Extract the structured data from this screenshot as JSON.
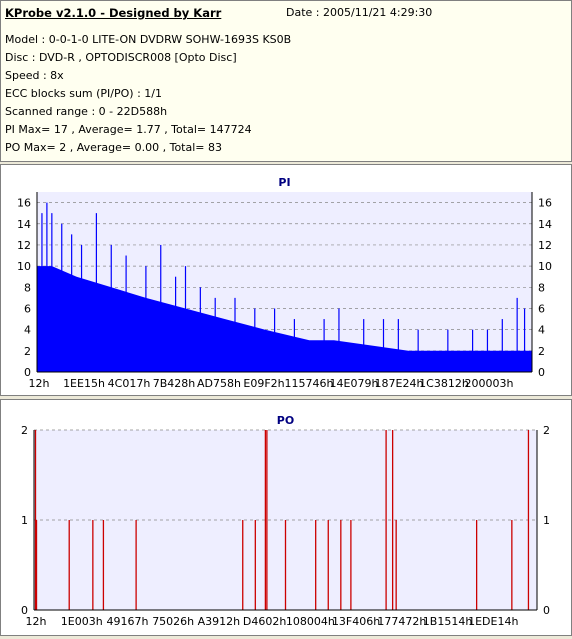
{
  "header": {
    "title": "KProbe v2.1.0 - Designed by Karr",
    "date": "Date : 2005/11/21 4:29:30",
    "lines": [
      "Model : 0-0-1-0 LITE-ON DVDRW SOHW-1693S KS0B",
      "Disc : DVD-R , OPTODISCR008 [Opto Disc]",
      "Speed : 8x",
      "ECC blocks sum (PI/PO) : 1/1",
      "Scanned range : 0 - 22D588h",
      "PI Max= 17 , Average= 1.77 , Total= 147724",
      "PO Max= 2 , Average= 0.00 , Total= 83"
    ]
  },
  "colors": {
    "pi_fill": "#0000ff",
    "po_line": "#cc0000",
    "title_text": "#000080",
    "grid": "#888888",
    "plot_bg": "#eeeeff"
  },
  "chart_data": [
    {
      "type": "area",
      "title": "PI",
      "ylim": [
        0,
        17
      ],
      "yticks": [
        0,
        2,
        4,
        6,
        8,
        10,
        12,
        14,
        16
      ],
      "xticks": [
        "12h",
        "1EE15h",
        "4C017h",
        "7B428h",
        "AD758h",
        "E09F2h",
        "115746h",
        "14E079h",
        "187E24h",
        "1C3812h",
        "200003h"
      ],
      "grid": "horizontal-dashed",
      "profile": [
        {
          "x": 0,
          "y": 10
        },
        {
          "x": 0.03,
          "y": 10
        },
        {
          "x": 0.08,
          "y": 9
        },
        {
          "x": 0.15,
          "y": 8
        },
        {
          "x": 0.22,
          "y": 7
        },
        {
          "x": 0.3,
          "y": 6
        },
        {
          "x": 0.38,
          "y": 5
        },
        {
          "x": 0.46,
          "y": 4
        },
        {
          "x": 0.55,
          "y": 3
        },
        {
          "x": 0.6,
          "y": 3
        },
        {
          "x": 0.75,
          "y": 2
        },
        {
          "x": 1.0,
          "y": 2
        }
      ],
      "peaks": [
        {
          "x": 0.01,
          "y": 15
        },
        {
          "x": 0.02,
          "y": 16
        },
        {
          "x": 0.03,
          "y": 15
        },
        {
          "x": 0.05,
          "y": 14
        },
        {
          "x": 0.07,
          "y": 13
        },
        {
          "x": 0.09,
          "y": 12
        },
        {
          "x": 0.12,
          "y": 15
        },
        {
          "x": 0.15,
          "y": 12
        },
        {
          "x": 0.18,
          "y": 11
        },
        {
          "x": 0.22,
          "y": 10
        },
        {
          "x": 0.25,
          "y": 12
        },
        {
          "x": 0.28,
          "y": 9
        },
        {
          "x": 0.3,
          "y": 10
        },
        {
          "x": 0.33,
          "y": 8
        },
        {
          "x": 0.36,
          "y": 7
        },
        {
          "x": 0.4,
          "y": 7
        },
        {
          "x": 0.44,
          "y": 6
        },
        {
          "x": 0.48,
          "y": 6
        },
        {
          "x": 0.52,
          "y": 5
        },
        {
          "x": 0.58,
          "y": 5
        },
        {
          "x": 0.61,
          "y": 6
        },
        {
          "x": 0.66,
          "y": 5
        },
        {
          "x": 0.7,
          "y": 5
        },
        {
          "x": 0.73,
          "y": 5
        },
        {
          "x": 0.77,
          "y": 4
        },
        {
          "x": 0.83,
          "y": 4
        },
        {
          "x": 0.88,
          "y": 4
        },
        {
          "x": 0.91,
          "y": 4
        },
        {
          "x": 0.94,
          "y": 5
        },
        {
          "x": 0.97,
          "y": 7
        },
        {
          "x": 0.985,
          "y": 6
        }
      ]
    },
    {
      "type": "bar",
      "title": "PO",
      "ylim": [
        0,
        2
      ],
      "yticks": [
        0,
        1,
        2
      ],
      "xticks": [
        "12h",
        "1E003h",
        "49167h",
        "75026h",
        "A3912h",
        "D4602h",
        "108004h",
        "13F406h",
        "177472h",
        "1B1514h",
        "1EDE14h"
      ],
      "grid": "horizontal-dashed",
      "spikes": [
        {
          "x": 0.003,
          "y": 2
        },
        {
          "x": 0.005,
          "y": 1
        },
        {
          "x": 0.07,
          "y": 1
        },
        {
          "x": 0.117,
          "y": 1
        },
        {
          "x": 0.138,
          "y": 1
        },
        {
          "x": 0.203,
          "y": 1
        },
        {
          "x": 0.415,
          "y": 1
        },
        {
          "x": 0.44,
          "y": 1
        },
        {
          "x": 0.46,
          "y": 2
        },
        {
          "x": 0.463,
          "y": 2
        },
        {
          "x": 0.5,
          "y": 1
        },
        {
          "x": 0.56,
          "y": 1
        },
        {
          "x": 0.585,
          "y": 1
        },
        {
          "x": 0.61,
          "y": 1
        },
        {
          "x": 0.63,
          "y": 1
        },
        {
          "x": 0.7,
          "y": 2
        },
        {
          "x": 0.713,
          "y": 2
        },
        {
          "x": 0.72,
          "y": 1
        },
        {
          "x": 0.88,
          "y": 1
        },
        {
          "x": 0.95,
          "y": 1
        },
        {
          "x": 0.983,
          "y": 2
        }
      ]
    }
  ]
}
